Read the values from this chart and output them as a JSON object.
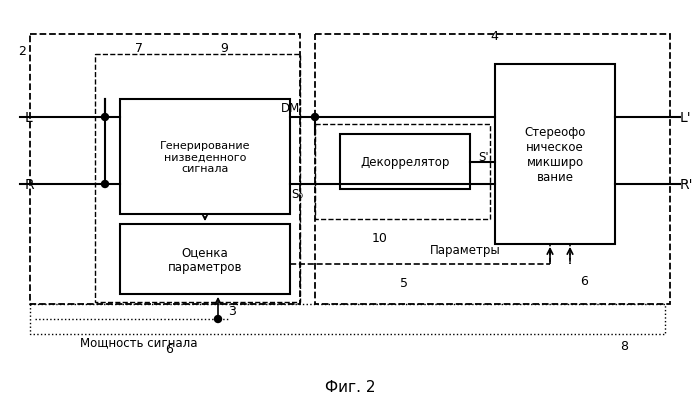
{
  "title": "Фиг. 2",
  "bg_color": "#ffffff",
  "fig_width": 7.0,
  "fig_height": 4.02,
  "labels": {
    "L_in": "L",
    "R_in": "R",
    "L_out": "L'",
    "R_out": "R'",
    "num2": "2",
    "num3": "3",
    "num4": "4",
    "num5": "5",
    "num6_right": "6",
    "num7": "7",
    "num8": "8",
    "num9": "9",
    "num10": "10",
    "DM": "DM",
    "S0": "S₀",
    "Sprime": "S'",
    "signal_power": "Мощность сигнала",
    "num6_sig": "6",
    "params": "Параметры",
    "box_gen": "Генерирование\nнизведенного\nсигнала",
    "box_est": "Оценка\nпараметров",
    "box_decor": "Декоррелятор",
    "box_stereo": "Стереофо\nническое\nмикширо\nвание"
  }
}
